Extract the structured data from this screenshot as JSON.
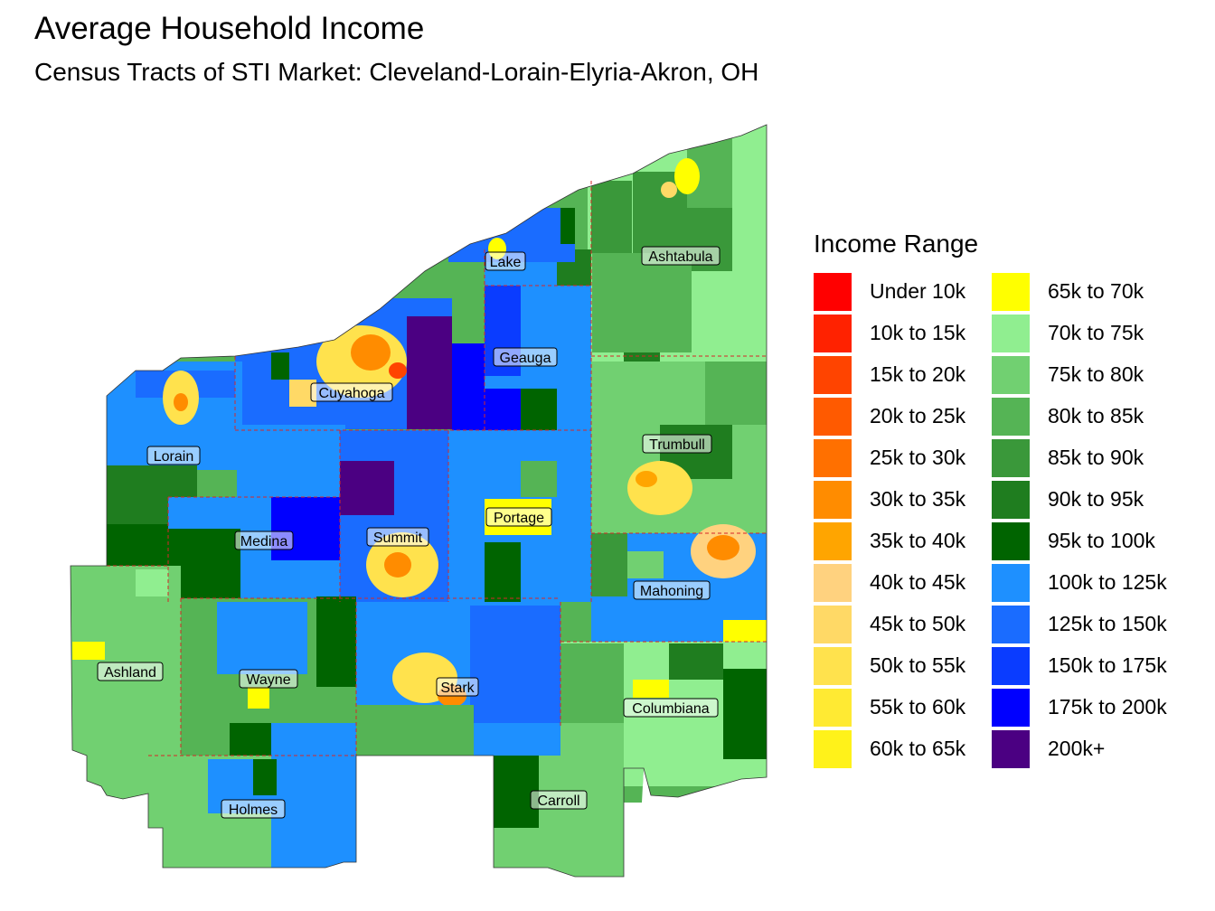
{
  "title": "Average Household Income",
  "subtitle": "Census Tracts of STI Market: Cleveland-Lorain-Elyria-Akron, OH",
  "legend": {
    "title": "Income Range",
    "items": [
      {
        "label": "Under 10k",
        "color": "#ff0000"
      },
      {
        "label": "10k to 15k",
        "color": "#ff2200"
      },
      {
        "label": "15k to 20k",
        "color": "#ff4400"
      },
      {
        "label": "20k to 25k",
        "color": "#ff5a00"
      },
      {
        "label": "25k to 30k",
        "color": "#ff7000"
      },
      {
        "label": "30k to 35k",
        "color": "#ff8c00"
      },
      {
        "label": "35k to 40k",
        "color": "#ffa500"
      },
      {
        "label": "40k to 45k",
        "color": "#ffd27f"
      },
      {
        "label": "45k to 50k",
        "color": "#ffd966"
      },
      {
        "label": "50k to 55k",
        "color": "#ffe24d"
      },
      {
        "label": "55k to 60k",
        "color": "#ffea33"
      },
      {
        "label": "60k to 65k",
        "color": "#fff21a"
      },
      {
        "label": "65k to 70k",
        "color": "#ffff00"
      },
      {
        "label": "70k to 75k",
        "color": "#90ee90"
      },
      {
        "label": "75k to 80k",
        "color": "#71d071"
      },
      {
        "label": "80k to 85k",
        "color": "#55b455"
      },
      {
        "label": "85k to 90k",
        "color": "#3a983a"
      },
      {
        "label": "90k to 95k",
        "color": "#1f7d1f"
      },
      {
        "label": "95k to 100k",
        "color": "#006400"
      },
      {
        "label": "100k to 125k",
        "color": "#1e90ff"
      },
      {
        "label": "125k to 150k",
        "color": "#1a6cff"
      },
      {
        "label": "150k to 175k",
        "color": "#0a3cff"
      },
      {
        "label": "175k to 200k",
        "color": "#0000ff"
      },
      {
        "label": "200k+",
        "color": "#4b0082"
      }
    ]
  },
  "counties": [
    {
      "name": "Lake"
    },
    {
      "name": "Ashtabula"
    },
    {
      "name": "Geauga"
    },
    {
      "name": "Cuyahoga"
    },
    {
      "name": "Lorain"
    },
    {
      "name": "Trumbull"
    },
    {
      "name": "Portage"
    },
    {
      "name": "Summit"
    },
    {
      "name": "Medina"
    },
    {
      "name": "Mahoning"
    },
    {
      "name": "Ashland"
    },
    {
      "name": "Wayne"
    },
    {
      "name": "Stark"
    },
    {
      "name": "Columbiana"
    },
    {
      "name": "Holmes"
    },
    {
      "name": "Carroll"
    }
  ]
}
